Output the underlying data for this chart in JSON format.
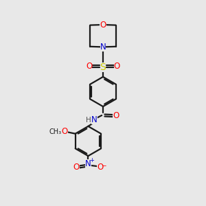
{
  "background_color": "#e8e8e8",
  "bond_color": "#1a1a1a",
  "atom_colors": {
    "O": "#ff0000",
    "N": "#0000cc",
    "S": "#cccc00",
    "C": "#1a1a1a",
    "H": "#505050"
  },
  "lw": 1.6,
  "fs": 8.5
}
